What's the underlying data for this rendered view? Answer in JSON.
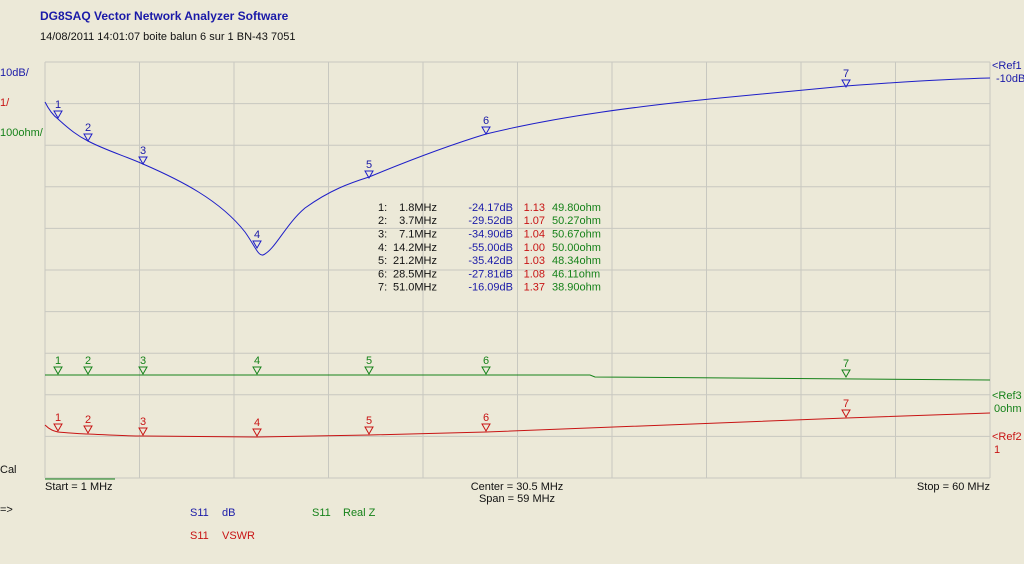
{
  "header": {
    "title": "DG8SAQ Vector Network Analyzer Software",
    "subtitle": "14/08/2011   14:01:07   boite balun 6 sur 1 BN-43 7051"
  },
  "scale_labels": {
    "db_div": "10dB/",
    "vswr_div": "1/",
    "ohm_div": "100ohm/",
    "cal": "Cal"
  },
  "references": [
    {
      "name": "<Ref1",
      "value": "-10dB"
    },
    {
      "name": "<Ref3",
      "value": "0ohm"
    },
    {
      "name": "<Ref2",
      "value": "1"
    }
  ],
  "footer": {
    "start": "Start = 1 MHz",
    "center": "Center = 30.5 MHz",
    "span": "Span = 59 MHz",
    "stop": "Stop = 60 MHz",
    "arrow": "=>"
  },
  "legend": [
    {
      "param": "S11",
      "unit": "dB"
    },
    {
      "param": "S11",
      "unit": "Real Z"
    },
    {
      "param": "S11",
      "unit": "VSWR"
    }
  ],
  "marker_table": {
    "rows": [
      [
        "1:",
        "1.8MHz",
        "-24.17dB",
        "1.13",
        "49.80ohm"
      ],
      [
        "2:",
        "3.7MHz",
        "-29.52dB",
        "1.07",
        "50.27ohm"
      ],
      [
        "3:",
        "7.1MHz",
        "-34.90dB",
        "1.04",
        "50.67ohm"
      ],
      [
        "4:",
        "14.2MHz",
        "-55.00dB",
        "1.00",
        "50.00ohm"
      ],
      [
        "5:",
        "21.2MHz",
        "-35.42dB",
        "1.03",
        "48.34ohm"
      ],
      [
        "6:",
        "28.5MHz",
        "-27.81dB",
        "1.08",
        "46.11ohm"
      ],
      [
        "7:",
        "51.0MHz",
        "-16.09dB",
        "1.37",
        "38.90ohm"
      ]
    ]
  },
  "markers": [
    "1",
    "2",
    "3",
    "4",
    "5",
    "6",
    "7"
  ]
}
